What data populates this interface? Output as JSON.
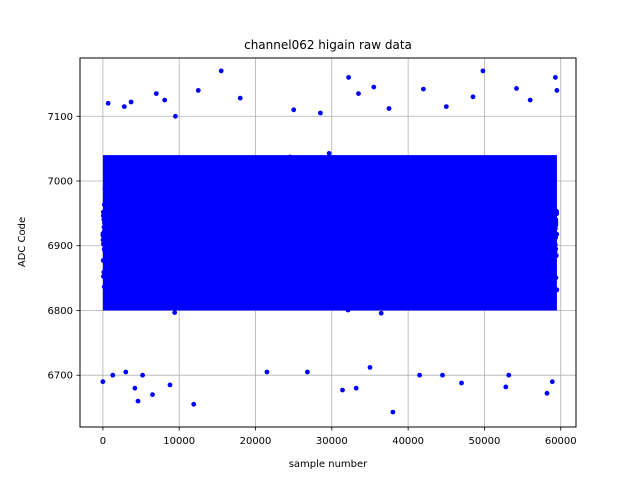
{
  "chart_data": {
    "type": "scatter",
    "title": "channel062 higain raw data",
    "xlabel": "sample number",
    "ylabel": "ADC Code",
    "xlim": [
      -3000,
      62000
    ],
    "ylim": [
      6620,
      7190
    ],
    "x_ticks": [
      0,
      10000,
      20000,
      30000,
      40000,
      50000,
      60000
    ],
    "x_tick_labels": [
      "0",
      "10000",
      "20000",
      "30000",
      "40000",
      "50000",
      "60000"
    ],
    "y_ticks": [
      6700,
      6800,
      6900,
      7000,
      7100
    ],
    "y_tick_labels": [
      "6700",
      "6800",
      "6900",
      "7000",
      "7100"
    ],
    "grid": true,
    "marker_color": "#0000ff",
    "distribution": {
      "x_range": [
        0,
        59500
      ],
      "dense_band": [
        6780,
        7060
      ],
      "center": 6920
    },
    "series": [
      {
        "points": [
          [
            0,
            6690
          ],
          [
            1300,
            6700
          ],
          [
            3000,
            6705
          ],
          [
            4200,
            6680
          ],
          [
            4600,
            6660
          ],
          [
            5200,
            6700
          ],
          [
            6500,
            6670
          ],
          [
            8800,
            6685
          ],
          [
            11900,
            6655
          ],
          [
            15500,
            7170
          ],
          [
            12500,
            7140
          ],
          [
            7000,
            7135
          ],
          [
            8100,
            7125
          ],
          [
            18000,
            7128
          ],
          [
            21500,
            6705
          ],
          [
            26800,
            6705
          ],
          [
            31400,
            6677
          ],
          [
            32200,
            7160
          ],
          [
            33200,
            6680
          ],
          [
            33500,
            7135
          ],
          [
            35000,
            6712
          ],
          [
            35500,
            7145
          ],
          [
            38000,
            6643
          ],
          [
            41500,
            6700
          ],
          [
            42000,
            7142
          ],
          [
            44500,
            6700
          ],
          [
            47000,
            6688
          ],
          [
            48500,
            7130
          ],
          [
            49800,
            7170
          ],
          [
            52800,
            6682
          ],
          [
            53200,
            6700
          ],
          [
            54200,
            7143
          ],
          [
            58200,
            6672
          ],
          [
            58900,
            6690
          ],
          [
            59300,
            7160
          ],
          [
            59500,
            7140
          ],
          [
            700,
            7120
          ],
          [
            2800,
            7115
          ],
          [
            3700,
            7122
          ],
          [
            9500,
            7100
          ],
          [
            25000,
            7110
          ],
          [
            28500,
            7105
          ],
          [
            37500,
            7112
          ],
          [
            45000,
            7115
          ],
          [
            56000,
            7125
          ]
        ]
      }
    ]
  }
}
